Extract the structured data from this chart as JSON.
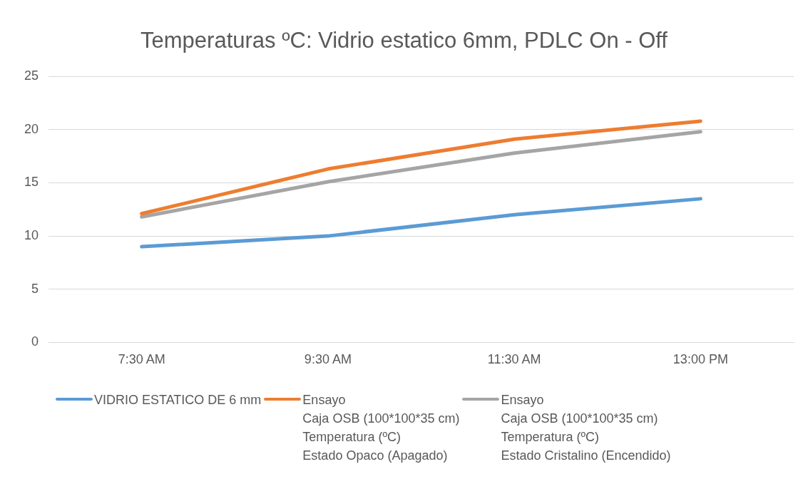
{
  "chart_data": {
    "type": "line",
    "title": "Temperaturas ºC: Vidrio estatico 6mm, PDLC On - Off",
    "categories": [
      "7:30 AM",
      "9:30 AM",
      "11:30 AM",
      "13:00 PM"
    ],
    "series": [
      {
        "name": "VIDRIO ESTATICO DE 6 mm",
        "color": "#5b9bd5",
        "values": [
          9,
          10,
          12,
          13.5
        ]
      },
      {
        "name": "Ensayo\nCaja OSB (100*100*35 cm)\nTemperatura (ºC)\nEstado Opaco (Apagado)",
        "color": "#ed7d31",
        "values": [
          12.1,
          16.3,
          19.1,
          20.8
        ]
      },
      {
        "name": "Ensayo\nCaja OSB (100*100*35 cm)\nTemperatura (ºC)\nEstado Cristalino (Encendido)",
        "color": "#a5a5a5",
        "values": [
          11.8,
          15.1,
          17.8,
          19.8
        ]
      }
    ],
    "ylim": [
      0,
      25
    ],
    "yticks": [
      0,
      5,
      10,
      15,
      20,
      25
    ],
    "grid": "y",
    "legend": "bottom",
    "marker": "none",
    "line_style": "solid"
  }
}
